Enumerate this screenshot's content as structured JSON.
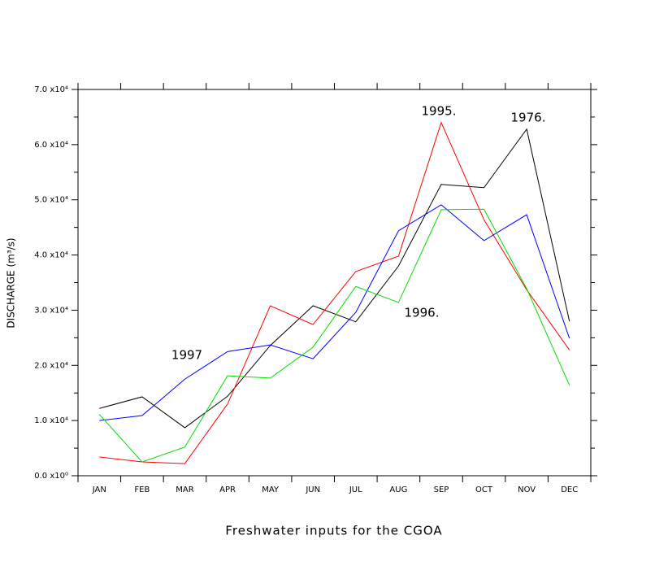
{
  "chart_data": {
    "type": "line",
    "title": "Freshwater inputs for the CGOA",
    "y_label": "DISCHARGE (m³/s)",
    "categories": [
      "JAN",
      "FEB",
      "MAR",
      "APR",
      "MAY",
      "JUN",
      "JUL",
      "AUG",
      "SEP",
      "OCT",
      "NOV",
      "DEC"
    ],
    "series": [
      {
        "name": "1976",
        "color": "#000000",
        "values": [
          12200,
          14300,
          8700,
          14400,
          23600,
          30800,
          27900,
          38000,
          52800,
          52200,
          62800,
          28000
        ]
      },
      {
        "name": "1995",
        "color": "#ff0000",
        "values": [
          3400,
          2500,
          2200,
          13000,
          30800,
          27400,
          37000,
          39800,
          64000,
          46400,
          33700,
          22800
        ]
      },
      {
        "name": "1997",
        "color": "#0000ff",
        "values": [
          10000,
          10900,
          17500,
          22500,
          23700,
          21200,
          29600,
          44400,
          49100,
          42600,
          47300,
          24900
        ]
      },
      {
        "name": "1996",
        "color": "#00dd00",
        "values": [
          11100,
          2500,
          5200,
          18100,
          17700,
          23300,
          34300,
          31400,
          48200,
          48300,
          33900,
          16400
        ]
      }
    ],
    "annotations": [
      "1995.",
      "1976.",
      "1996.",
      "1997"
    ],
    "ylim": [
      0,
      70000
    ],
    "yticks": [
      {
        "value": 0,
        "label": "0.0 x10⁰"
      },
      {
        "value": 10000,
        "label": "1.0 x10⁴"
      },
      {
        "value": 20000,
        "label": "2.0 x10⁴"
      },
      {
        "value": 30000,
        "label": "3.0 x10⁴"
      },
      {
        "value": 40000,
        "label": "4.0 x10⁴"
      },
      {
        "value": 50000,
        "label": "5.0 x10⁴"
      },
      {
        "value": 60000,
        "label": "6.0 x10⁴"
      },
      {
        "value": 70000,
        "label": "7.0 x10⁴"
      }
    ],
    "yminorticks": [
      5000,
      15000,
      25000,
      35000,
      45000,
      55000,
      65000
    ]
  }
}
